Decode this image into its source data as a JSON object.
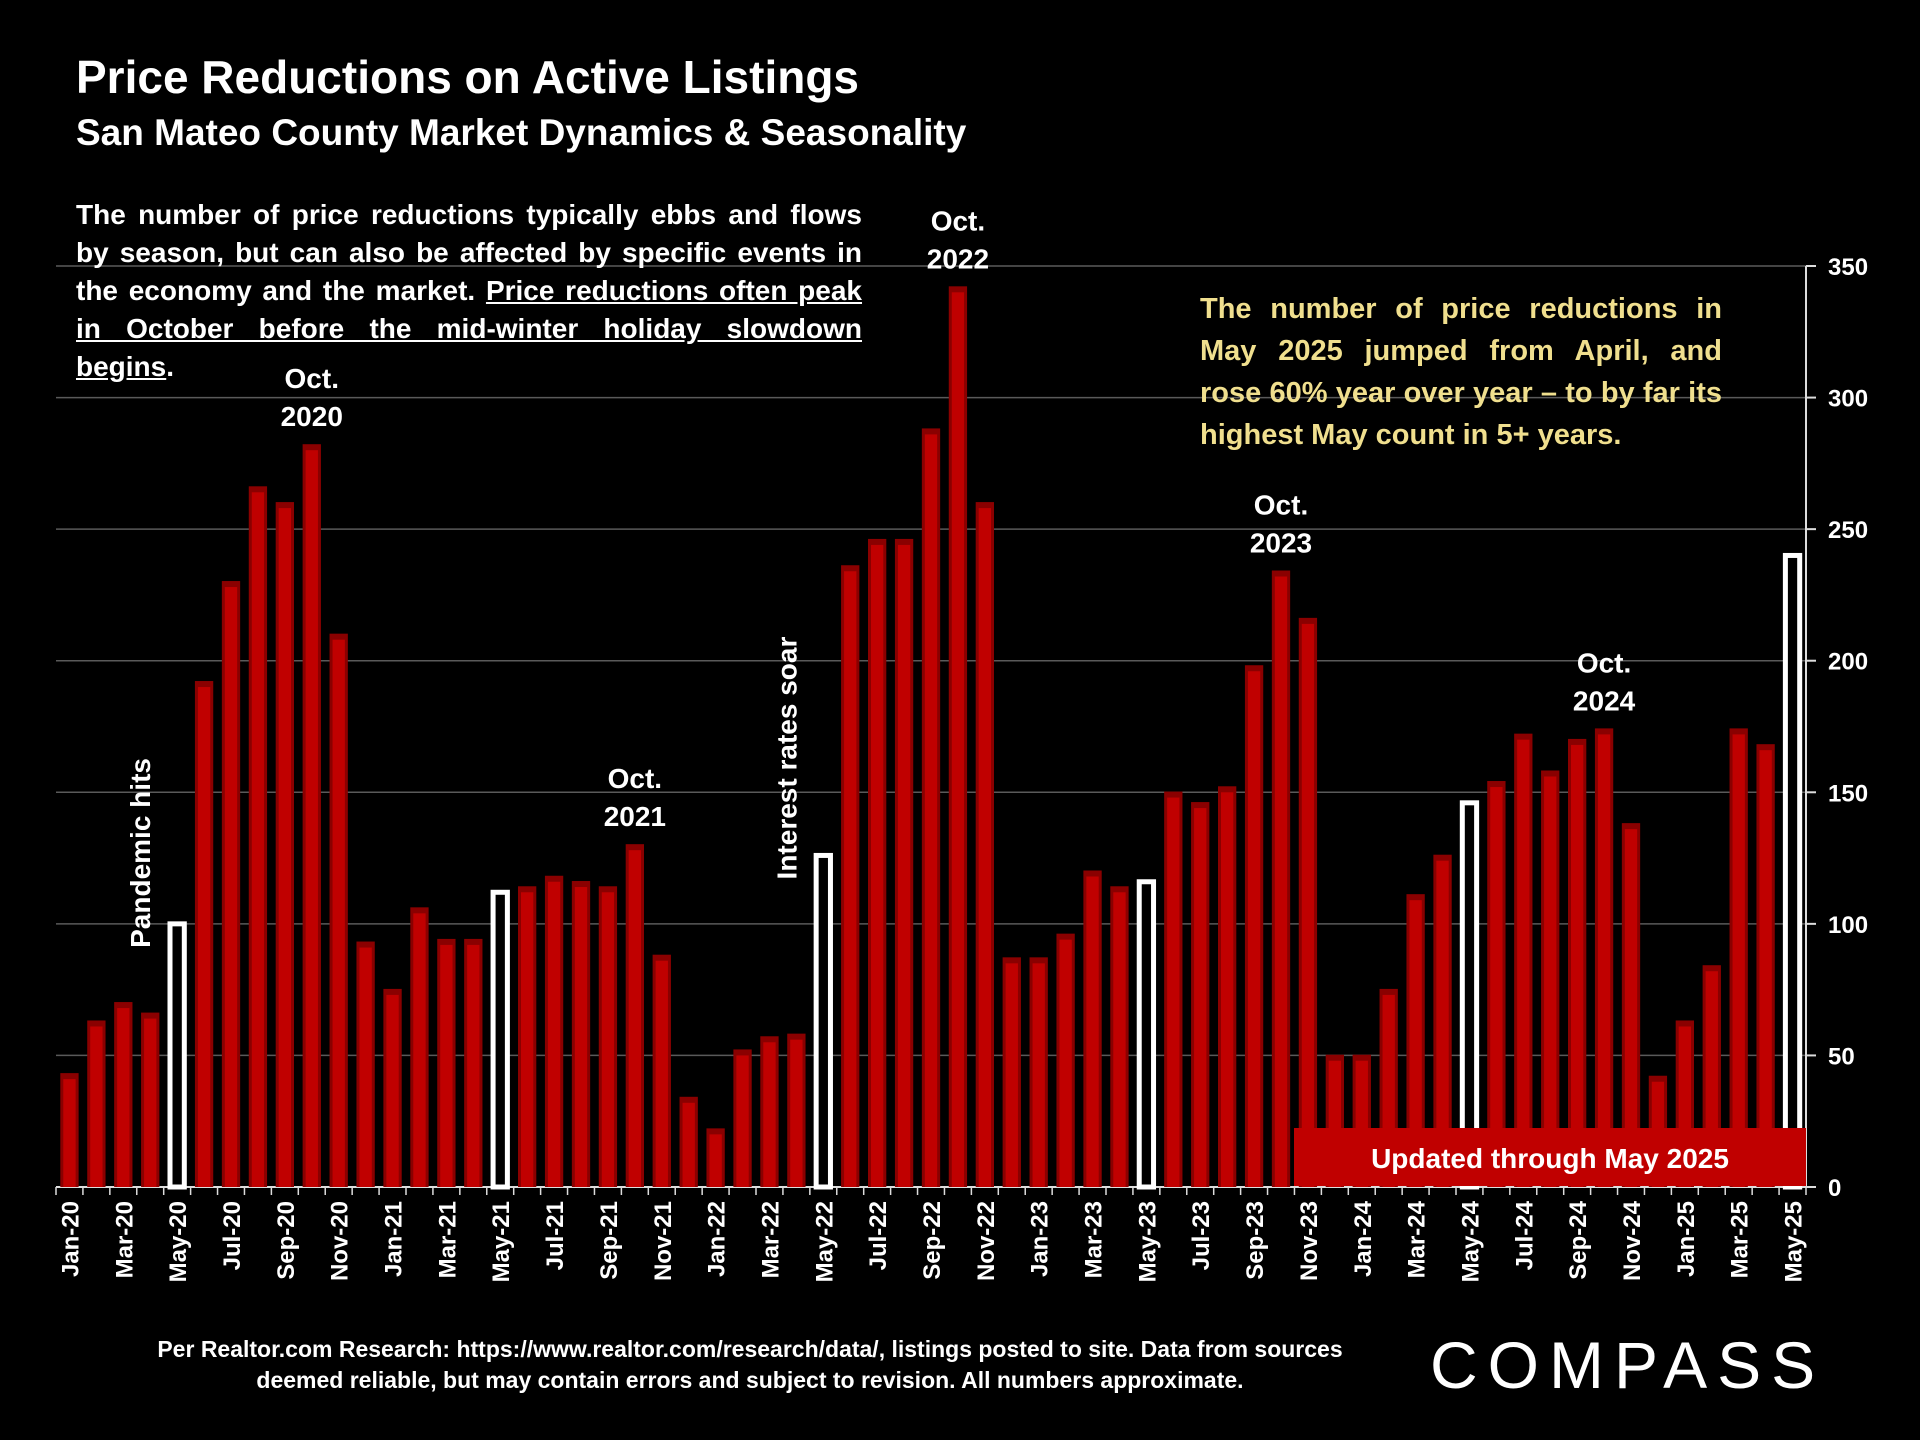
{
  "header": {
    "title": "Price Reductions on Active Listings",
    "subtitle": "San Mateo County Market Dynamics & Seasonality"
  },
  "intro": {
    "text": "The number of price reductions typically ebbs and flows by season, but can also be affected by specific events in the economy and the market. ",
    "underlined": "Price reductions often peak in October before the mid-winter holiday slowdown begins",
    "end": "."
  },
  "callout": "The number of price reductions in May 2025 jumped from April, and rose 60% year over year – to by far its highest May count in 5+ years.",
  "updated_badge": "Updated through May 2025",
  "source": "Per Realtor.com Research:  https://www.realtor.com/research/data/, listings posted to site. Data from sources deemed reliable, but may contain errors and subject to revision. All numbers approximate.",
  "brand": "COMPASS",
  "colors": {
    "bar": "#c00000",
    "highlight": "#ffffff",
    "callout": "#f0df8e",
    "background": "#000000"
  },
  "chart_data": {
    "type": "bar",
    "x": [
      "Jan-20",
      "Feb-20",
      "Mar-20",
      "Apr-20",
      "May-20",
      "Jun-20",
      "Jul-20",
      "Aug-20",
      "Sep-20",
      "Oct-20",
      "Nov-20",
      "Dec-20",
      "Jan-21",
      "Feb-21",
      "Mar-21",
      "Apr-21",
      "May-21",
      "Jun-21",
      "Jul-21",
      "Aug-21",
      "Sep-21",
      "Oct-21",
      "Nov-21",
      "Dec-21",
      "Jan-22",
      "Feb-22",
      "Mar-22",
      "Apr-22",
      "May-22",
      "Jun-22",
      "Jul-22",
      "Aug-22",
      "Sep-22",
      "Oct-22",
      "Nov-22",
      "Dec-22",
      "Jan-23",
      "Feb-23",
      "Mar-23",
      "Apr-23",
      "May-23",
      "Jun-23",
      "Jul-23",
      "Aug-23",
      "Sep-23",
      "Oct-23",
      "Nov-23",
      "Dec-23",
      "Jan-24",
      "Feb-24",
      "Mar-24",
      "Apr-24",
      "May-24",
      "Jun-24",
      "Jul-24",
      "Aug-24",
      "Sep-24",
      "Oct-24",
      "Nov-24",
      "Dec-24",
      "Jan-25",
      "Feb-25",
      "Mar-25",
      "Apr-25",
      "May-25"
    ],
    "tick_labels": [
      "Jan-20",
      "Mar-20",
      "May-20",
      "Jul-20",
      "Sep-20",
      "Nov-20",
      "Jan-21",
      "Mar-21",
      "May-21",
      "Jul-21",
      "Sep-21",
      "Nov-21",
      "Jan-22",
      "Mar-22",
      "May-22",
      "Jul-22",
      "Sep-22",
      "Nov-22",
      "Jan-23",
      "Mar-23",
      "May-23",
      "Jul-23",
      "Sep-23",
      "Nov-23",
      "Jan-24",
      "Mar-24",
      "May-24",
      "Jul-24",
      "Sep-24",
      "Nov-24",
      "Jan-25",
      "Mar-25",
      "May-25"
    ],
    "values": [
      41,
      61,
      68,
      64,
      100,
      190,
      228,
      264,
      258,
      280,
      208,
      91,
      73,
      104,
      92,
      92,
      112,
      112,
      116,
      114,
      112,
      128,
      86,
      32,
      20,
      50,
      55,
      56,
      126,
      234,
      244,
      244,
      286,
      340,
      258,
      85,
      85,
      94,
      118,
      112,
      116,
      148,
      144,
      150,
      196,
      232,
      214,
      48,
      48,
      73,
      109,
      124,
      146,
      152,
      170,
      156,
      168,
      172,
      136,
      40,
      61,
      82,
      172,
      166,
      240
    ],
    "highlighted": [
      "May-20",
      "May-21",
      "May-22",
      "May-23",
      "May-24",
      "May-25"
    ],
    "ylim": [
      0,
      350
    ],
    "yticks": [
      0,
      50,
      100,
      150,
      200,
      250,
      300,
      350
    ],
    "y_axis_side": "right",
    "grid": true,
    "annotations": [
      {
        "x": "Oct-20",
        "lines": [
          "Oct.",
          "2020"
        ]
      },
      {
        "x": "Oct-21",
        "lines": [
          "Oct.",
          "2021"
        ]
      },
      {
        "x": "Oct-22",
        "lines": [
          "Oct.",
          "2022"
        ]
      },
      {
        "x": "Oct-23",
        "lines": [
          "Oct.",
          "2023"
        ]
      },
      {
        "x": "Oct-24",
        "lines": [
          "Oct.",
          "2024"
        ]
      }
    ],
    "event_labels": [
      {
        "x": "May-20",
        "text": "Pandemic hits"
      },
      {
        "x": "May-22",
        "text": "Interest rates soar"
      }
    ]
  }
}
